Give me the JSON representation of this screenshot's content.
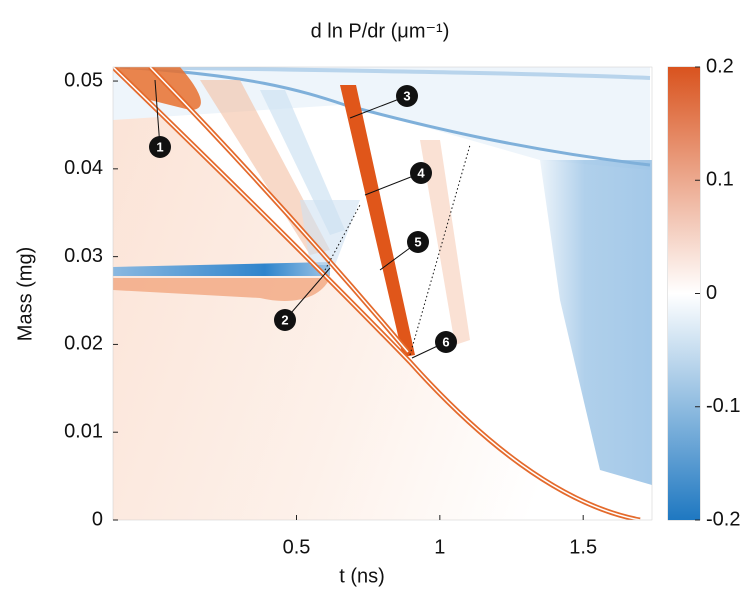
{
  "chart_data": {
    "type": "heatmap",
    "title": "d ln P/dr (μm⁻¹)",
    "x_label": "t (ns)",
    "y_label": "Mass (mg)",
    "xlim": [
      -0.14,
      1.74
    ],
    "xticks": [
      0.5,
      1,
      1.5
    ],
    "ylim": [
      0,
      0.0516
    ],
    "yticks": [
      0,
      0.01,
      0.02,
      0.03,
      0.04,
      0.05
    ],
    "clim": [
      -0.2,
      0.2
    ],
    "cticks": [
      0.2,
      0.1,
      0,
      -0.1,
      -0.2
    ],
    "colormap": [
      "#1f78c1",
      "#ffffff",
      "#d9531e"
    ],
    "annotations": [
      "1",
      "2",
      "3",
      "4",
      "5",
      "6"
    ]
  }
}
